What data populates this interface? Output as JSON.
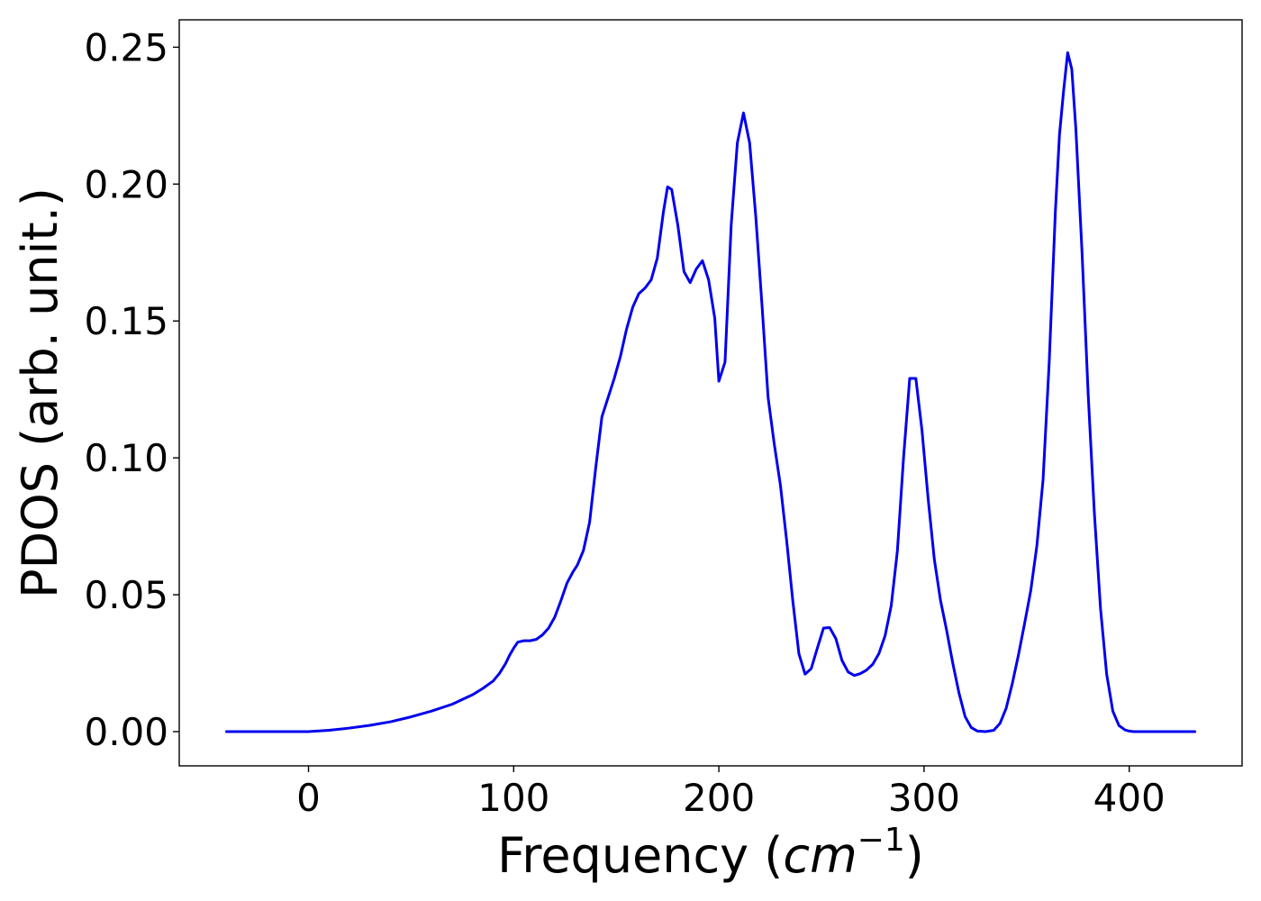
{
  "chart_data": {
    "type": "line",
    "xlabel": "Frequency (",
    "xlabel_math_base": "cm",
    "xlabel_math_exp": "−1",
    "xlabel_suffix": ")",
    "ylabel": "PDOS (arb. unit.)",
    "xlim": [
      -63,
      455
    ],
    "ylim": [
      -0.0125,
      0.26
    ],
    "xticks": [
      {
        "value": 0,
        "label": "0"
      },
      {
        "value": 100,
        "label": "100"
      },
      {
        "value": 200,
        "label": "200"
      },
      {
        "value": 300,
        "label": "300"
      },
      {
        "value": 400,
        "label": "400"
      }
    ],
    "yticks": [
      {
        "value": 0.0,
        "label": "0.00"
      },
      {
        "value": 0.05,
        "label": "0.05"
      },
      {
        "value": 0.1,
        "label": "0.10"
      },
      {
        "value": 0.15,
        "label": "0.15"
      },
      {
        "value": 0.2,
        "label": "0.20"
      },
      {
        "value": 0.25,
        "label": "0.25"
      }
    ],
    "grid": false,
    "series": [
      {
        "color": "#0000ee",
        "x": [
          -40,
          -20,
          0,
          10,
          20,
          30,
          40,
          50,
          60,
          70,
          80,
          85,
          90,
          93,
          96,
          98,
          100,
          102,
          105,
          108,
          111,
          114,
          117,
          120,
          123,
          126,
          129,
          131,
          134,
          137,
          140,
          143,
          146,
          149,
          152,
          155,
          158,
          161,
          164,
          167,
          170,
          173,
          175,
          177,
          180,
          183,
          186,
          189,
          192,
          195,
          198,
          200,
          203,
          206,
          209,
          212,
          215,
          218,
          221,
          224,
          227,
          230,
          233,
          236,
          239,
          242,
          245,
          248,
          251,
          254,
          257,
          260,
          263,
          266,
          269,
          272,
          275,
          278,
          281,
          284,
          287,
          290,
          293,
          296,
          299,
          302,
          305,
          308,
          311,
          314,
          317,
          320,
          323,
          326,
          330,
          334,
          337,
          340,
          343,
          346,
          349,
          352,
          355,
          358,
          361,
          364,
          366,
          368,
          370,
          372,
          374,
          377,
          380,
          383,
          386,
          389,
          392,
          395,
          398,
          400,
          402,
          405,
          410,
          420,
          432
        ],
        "y": [
          0.0,
          0.0,
          0.0,
          0.0005,
          0.0013,
          0.0023,
          0.0036,
          0.0054,
          0.0075,
          0.01,
          0.0135,
          0.0158,
          0.0185,
          0.0212,
          0.0248,
          0.0279,
          0.0305,
          0.0327,
          0.0332,
          0.0332,
          0.0337,
          0.0353,
          0.0378,
          0.0418,
          0.0478,
          0.0543,
          0.0585,
          0.0608,
          0.0662,
          0.0765,
          0.0965,
          0.115,
          0.122,
          0.129,
          0.137,
          0.147,
          0.155,
          0.16,
          0.162,
          0.165,
          0.173,
          0.19,
          0.199,
          0.198,
          0.185,
          0.168,
          0.164,
          0.169,
          0.172,
          0.165,
          0.151,
          0.128,
          0.135,
          0.185,
          0.215,
          0.226,
          0.215,
          0.188,
          0.156,
          0.122,
          0.105,
          0.09,
          0.07,
          0.048,
          0.0285,
          0.021,
          0.023,
          0.0305,
          0.0378,
          0.038,
          0.034,
          0.026,
          0.0218,
          0.0205,
          0.0212,
          0.0225,
          0.0246,
          0.0285,
          0.035,
          0.046,
          0.066,
          0.1,
          0.129,
          0.129,
          0.11,
          0.085,
          0.063,
          0.048,
          0.037,
          0.025,
          0.0142,
          0.0055,
          0.0015,
          0.0002,
          0.0,
          0.0005,
          0.003,
          0.0085,
          0.0175,
          0.028,
          0.0395,
          0.0515,
          0.068,
          0.092,
          0.135,
          0.19,
          0.218,
          0.234,
          0.248,
          0.242,
          0.22,
          0.175,
          0.123,
          0.08,
          0.045,
          0.021,
          0.0075,
          0.0022,
          0.0006,
          0.0002,
          0.0,
          0.0,
          0.0,
          0.0,
          0.0
        ]
      }
    ]
  }
}
